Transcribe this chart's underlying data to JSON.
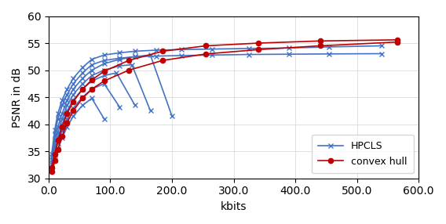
{
  "xlabel": "kbits",
  "ylabel": "PSNR in dB",
  "xlim": [
    0,
    600
  ],
  "ylim": [
    30,
    60
  ],
  "xticks": [
    0.0,
    100.0,
    200.0,
    300.0,
    400.0,
    500.0,
    600.0
  ],
  "yticks": [
    30,
    35,
    40,
    45,
    50,
    55,
    60
  ],
  "hpcls_color": "#4472c4",
  "convex_hull_color": "#c00000",
  "linewidth": 1.2,
  "marker_size_x": 4.0,
  "marker_size_o": 4.5,
  "figsize": [
    5.68,
    2.86
  ],
  "dpi": 100,
  "hpcls_curves": [
    {
      "x": [
        5,
        10,
        15,
        22,
        30,
        40,
        55,
        70,
        90
      ],
      "y": [
        31.5,
        33.5,
        35.5,
        37.5,
        39.5,
        41.5,
        43.5,
        44.8,
        41.0
      ]
    },
    {
      "x": [
        5,
        10,
        15,
        22,
        30,
        40,
        55,
        70,
        90,
        115
      ],
      "y": [
        32.0,
        34.5,
        36.5,
        38.8,
        41.0,
        43.0,
        45.0,
        46.5,
        47.5,
        43.2
      ]
    },
    {
      "x": [
        5,
        10,
        15,
        22,
        30,
        40,
        55,
        70,
        90,
        110,
        140
      ],
      "y": [
        32.5,
        35.0,
        37.5,
        40.0,
        42.5,
        44.5,
        46.5,
        48.0,
        49.0,
        49.5,
        43.5
      ]
    },
    {
      "x": [
        5,
        10,
        15,
        22,
        30,
        40,
        55,
        70,
        90,
        115,
        135,
        165
      ],
      "y": [
        33.0,
        36.0,
        38.5,
        41.0,
        43.5,
        45.5,
        47.5,
        49.0,
        50.0,
        50.8,
        51.0,
        42.5
      ]
    },
    {
      "x": [
        5,
        10,
        15,
        22,
        30,
        40,
        55,
        70,
        90,
        115,
        140,
        165,
        200
      ],
      "y": [
        33.5,
        37.0,
        39.5,
        42.0,
        44.5,
        46.5,
        48.5,
        50.0,
        51.2,
        52.0,
        52.5,
        52.8,
        41.5
      ]
    },
    {
      "x": [
        5,
        10,
        15,
        22,
        30,
        40,
        55,
        70,
        90,
        115,
        140,
        175,
        215,
        265,
        325,
        390,
        455,
        540
      ],
      "y": [
        34.0,
        38.0,
        41.0,
        43.5,
        45.5,
        47.5,
        49.5,
        51.0,
        51.8,
        52.2,
        52.5,
        52.6,
        52.7,
        52.8,
        52.9,
        52.95,
        53.0,
        53.05
      ]
    },
    {
      "x": [
        5,
        10,
        15,
        22,
        30,
        40,
        55,
        70,
        90,
        115,
        140,
        175,
        215,
        265,
        325,
        390,
        455,
        540
      ],
      "y": [
        34.5,
        39.0,
        42.0,
        44.5,
        46.5,
        48.5,
        50.5,
        52.0,
        52.8,
        53.2,
        53.5,
        53.7,
        53.8,
        53.9,
        54.0,
        54.1,
        54.3,
        54.5
      ]
    }
  ],
  "convex_hull_curves": [
    {
      "x": [
        5,
        10,
        15,
        22,
        30,
        40,
        55,
        70,
        90,
        130,
        185,
        255,
        340,
        440,
        565
      ],
      "y": [
        31.3,
        33.3,
        35.3,
        37.8,
        40.3,
        42.5,
        44.8,
        46.5,
        48.0,
        50.0,
        51.8,
        53.0,
        53.8,
        54.5,
        55.2
      ]
    },
    {
      "x": [
        5,
        10,
        15,
        22,
        30,
        40,
        55,
        70,
        90,
        130,
        185,
        255,
        340,
        440,
        565
      ],
      "y": [
        32.0,
        34.5,
        37.0,
        39.5,
        42.0,
        44.2,
        46.5,
        48.2,
        49.8,
        51.8,
        53.5,
        54.5,
        55.0,
        55.4,
        55.6
      ]
    }
  ]
}
